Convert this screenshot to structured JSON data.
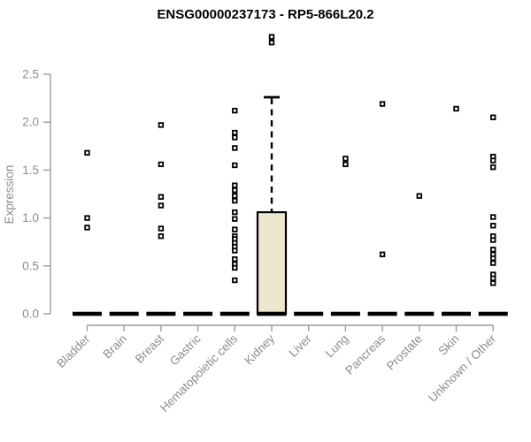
{
  "chart_data": {
    "type": "box",
    "title": "ENSG00000237173 - RP5-866L20.2",
    "ylabel": "Expression",
    "xlabel": "",
    "ylim": [
      0,
      2.5
    ],
    "yticks": [
      "0.0",
      "0.5",
      "1.0",
      "1.5",
      "2.0",
      "2.5"
    ],
    "grid": false,
    "legend": null,
    "categories": [
      "Bladder",
      "Brain",
      "Breast",
      "Gastric",
      "Hematopoietic cells",
      "Kidney",
      "Liver",
      "Lung",
      "Pancreas",
      "Prostate",
      "Skin",
      "Unknown / Other"
    ],
    "boxes": [
      {
        "category": "Bladder",
        "q1": 0,
        "median": 0,
        "q3": 0,
        "whisker_low": 0,
        "whisker_high": 0,
        "outliers": [
          1.68,
          1.0,
          0.9
        ]
      },
      {
        "category": "Brain",
        "q1": 0,
        "median": 0,
        "q3": 0,
        "whisker_low": 0,
        "whisker_high": 0,
        "outliers": []
      },
      {
        "category": "Breast",
        "q1": 0,
        "median": 0,
        "q3": 0,
        "whisker_low": 0,
        "whisker_high": 0,
        "outliers": [
          1.97,
          1.56,
          1.22,
          1.13,
          0.89,
          0.81
        ]
      },
      {
        "category": "Gastric",
        "q1": 0,
        "median": 0,
        "q3": 0,
        "whisker_low": 0,
        "whisker_high": 0,
        "outliers": []
      },
      {
        "category": "Hematopoietic cells",
        "q1": 0,
        "median": 0,
        "q3": 0,
        "whisker_low": 0,
        "whisker_high": 0,
        "outliers": [
          2.12,
          1.89,
          1.84,
          1.73,
          1.55,
          1.34,
          1.29,
          1.23,
          1.18,
          1.06,
          0.99,
          0.88,
          0.81,
          0.78,
          0.74,
          0.7,
          0.66,
          0.57,
          0.52,
          0.48,
          0.35
        ]
      },
      {
        "category": "Kidney",
        "q1": 0,
        "median": 0,
        "q3": 1.06,
        "whisker_low": 0,
        "whisker_high": 2.26,
        "outliers": [
          2.89,
          2.83
        ]
      },
      {
        "category": "Liver",
        "q1": 0,
        "median": 0,
        "q3": 0,
        "whisker_low": 0,
        "whisker_high": 0,
        "outliers": []
      },
      {
        "category": "Lung",
        "q1": 0,
        "median": 0,
        "q3": 0,
        "whisker_low": 0,
        "whisker_high": 0,
        "outliers": [
          1.62,
          1.56
        ]
      },
      {
        "category": "Pancreas",
        "q1": 0,
        "median": 0,
        "q3": 0,
        "whisker_low": 0,
        "whisker_high": 0,
        "outliers": [
          2.19,
          0.62
        ]
      },
      {
        "category": "Prostate",
        "q1": 0,
        "median": 0,
        "q3": 0,
        "whisker_low": 0,
        "whisker_high": 0,
        "outliers": [
          1.23
        ]
      },
      {
        "category": "Skin",
        "q1": 0,
        "median": 0,
        "q3": 0,
        "whisker_low": 0,
        "whisker_high": 0,
        "outliers": [
          2.14
        ]
      },
      {
        "category": "Unknown / Other",
        "q1": 0,
        "median": 0,
        "q3": 0,
        "whisker_low": 0,
        "whisker_high": 0,
        "outliers": [
          2.05,
          1.64,
          1.6,
          1.53,
          1.01,
          0.92,
          0.81,
          0.77,
          0.67,
          0.62,
          0.58,
          0.53,
          0.41,
          0.37,
          0.32
        ]
      }
    ],
    "colors": {
      "background": "#ffffff",
      "title_text": "#000000",
      "axis_line": "#9c9c9c",
      "tick_text": "#8c8c8c",
      "box_fill": "#ece7cd",
      "box_stroke": "#000000",
      "whisker": "#000000",
      "median_bar": "#000000",
      "outlier_stroke": "#000000",
      "outlier_fill": "#ffffff"
    }
  }
}
